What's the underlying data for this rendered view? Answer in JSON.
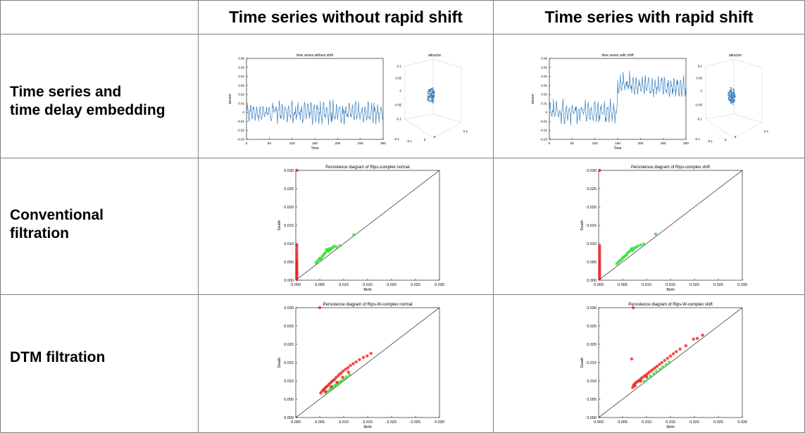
{
  "headers": {
    "col1": "Time series without rapid shift",
    "col2": "Time series with rapid shift"
  },
  "rows": {
    "row1": "Time series and\ntime delay embedding",
    "row2": "Conventional\nfiltration",
    "row3": "DTM filtration"
  },
  "colors": {
    "grid": "#808080",
    "series": "#3a7fbf",
    "green": "#22dd22",
    "red": "#ee1111"
  },
  "chart_data": [
    {
      "type": "line",
      "title": "time series without shift",
      "xlabel": "Time",
      "ylabel": "sensor",
      "xlim": [
        0,
        300
      ],
      "ylim": [
        -0.03,
        0.06
      ],
      "xticks": [
        "0",
        "50",
        "100",
        "150",
        "200",
        "250",
        "300"
      ],
      "yticks": [
        "0.06",
        "0.05",
        "0.04",
        "0.03",
        "0.02",
        "0.01",
        "0",
        "-0.01",
        "-0.02",
        "-0.03"
      ],
      "shift": false
    },
    {
      "type": "scatter",
      "title": "attractor",
      "zticks": [
        "0.1",
        "0.05",
        "0",
        "-0.05",
        "-0.1"
      ],
      "xticks": [
        "-0.1",
        "0"
      ],
      "yticks": [
        "-0.1",
        "0",
        "0.1"
      ]
    },
    {
      "type": "line",
      "title": "time series with shift",
      "xlabel": "Time",
      "ylabel": "sensor",
      "xlim": [
        0,
        300
      ],
      "ylim": [
        -0.03,
        0.06
      ],
      "xticks": [
        "0",
        "50",
        "100",
        "150",
        "200",
        "250",
        "300"
      ],
      "yticks": [
        "0.06",
        "0.05",
        "0.04",
        "0.03",
        "0.02",
        "0.01",
        "0",
        "-0.01",
        "-0.02",
        "-0.03"
      ],
      "shift": true,
      "shift_at": 150
    },
    {
      "type": "scatter",
      "title": "attractor",
      "zticks": [
        "0.1",
        "0.05",
        "0",
        "-0.05",
        "-0.1"
      ],
      "xticks": [
        "-0.1",
        "0"
      ],
      "yticks": [
        "-0.1",
        "0",
        "0.1"
      ]
    },
    {
      "type": "scatter",
      "title": "Persistence diagram of Rips-complex normal",
      "xlabel": "Birth",
      "ylabel": "Death",
      "xlim": [
        0,
        0.03
      ],
      "ylim": [
        0,
        0.03
      ],
      "xticks": [
        "0.000",
        "0.005",
        "0.010",
        "0.015",
        "0.020",
        "0.025",
        "0.030"
      ],
      "yticks": [
        "0.030",
        "0.025",
        "0.020",
        "0.015",
        "0.010",
        "0.005",
        "0.000"
      ],
      "series": [
        {
          "color": "red",
          "points": [
            [
              0.0002,
              0.0002
            ],
            [
              0.0002,
              0.0006
            ],
            [
              0.0002,
              0.001
            ],
            [
              0.0002,
              0.0014
            ],
            [
              0.0002,
              0.0018
            ],
            [
              0.0002,
              0.0022
            ],
            [
              0.0002,
              0.0026
            ],
            [
              0.0002,
              0.003
            ],
            [
              0.0002,
              0.0034
            ],
            [
              0.0002,
              0.0038
            ],
            [
              0.0002,
              0.0042
            ],
            [
              0.0002,
              0.0046
            ],
            [
              0.0002,
              0.005
            ],
            [
              0.0002,
              0.0055
            ],
            [
              0.0002,
              0.006
            ],
            [
              0.0002,
              0.0066
            ],
            [
              0.0002,
              0.0072
            ],
            [
              0.0002,
              0.0078
            ],
            [
              0.0002,
              0.0085
            ],
            [
              0.0002,
              0.0092
            ],
            [
              0.0002,
              0.0097
            ],
            [
              0.0002,
              0.03
            ]
          ]
        },
        {
          "color": "green",
          "points": [
            [
              0.0042,
              0.0048
            ],
            [
              0.0045,
              0.0052
            ],
            [
              0.0048,
              0.0056
            ],
            [
              0.005,
              0.006
            ],
            [
              0.0052,
              0.0058
            ],
            [
              0.0055,
              0.0064
            ],
            [
              0.0057,
              0.0068
            ],
            [
              0.006,
              0.0072
            ],
            [
              0.0062,
              0.0076
            ],
            [
              0.0064,
              0.0084
            ],
            [
              0.0066,
              0.0082
            ],
            [
              0.0068,
              0.0079
            ],
            [
              0.007,
              0.0086
            ],
            [
              0.0072,
              0.0083
            ],
            [
              0.0074,
              0.0087
            ],
            [
              0.0077,
              0.0089
            ],
            [
              0.008,
              0.0093
            ],
            [
              0.0085,
              0.0091
            ],
            [
              0.0092,
              0.0094
            ],
            [
              0.0121,
              0.0124
            ]
          ]
        }
      ]
    },
    {
      "type": "scatter",
      "title": "Persistence diagram of Rips-complex shift",
      "xlabel": "Birth",
      "ylabel": "Death",
      "xlim": [
        0,
        0.03
      ],
      "ylim": [
        0,
        0.03
      ],
      "xticks": [
        "0.000",
        "0.005",
        "0.010",
        "0.015",
        "0.020",
        "0.025",
        "0.030"
      ],
      "yticks": [
        "0.030",
        "0.025",
        "0.020",
        "0.015",
        "0.010",
        "0.005",
        "0.000"
      ],
      "series": [
        {
          "color": "red",
          "points": [
            [
              0.0002,
              0.0003
            ],
            [
              0.0002,
              0.0008
            ],
            [
              0.0002,
              0.0013
            ],
            [
              0.0002,
              0.0018
            ],
            [
              0.0002,
              0.0023
            ],
            [
              0.0002,
              0.0028
            ],
            [
              0.0002,
              0.0033
            ],
            [
              0.0002,
              0.0038
            ],
            [
              0.0002,
              0.0043
            ],
            [
              0.0002,
              0.0048
            ],
            [
              0.0002,
              0.0053
            ],
            [
              0.0002,
              0.0058
            ],
            [
              0.0002,
              0.0064
            ],
            [
              0.0002,
              0.007
            ],
            [
              0.0002,
              0.0076
            ],
            [
              0.0002,
              0.0082
            ],
            [
              0.0002,
              0.0088
            ],
            [
              0.0002,
              0.0094
            ],
            [
              0.0002,
              0.03
            ]
          ]
        },
        {
          "color": "green",
          "points": [
            [
              0.0038,
              0.0045
            ],
            [
              0.0041,
              0.0049
            ],
            [
              0.0044,
              0.0053
            ],
            [
              0.0047,
              0.0056
            ],
            [
              0.005,
              0.006
            ],
            [
              0.0052,
              0.0063
            ],
            [
              0.0055,
              0.0066
            ],
            [
              0.0058,
              0.0069
            ],
            [
              0.006,
              0.0074
            ],
            [
              0.0063,
              0.0077
            ],
            [
              0.0066,
              0.008
            ],
            [
              0.0068,
              0.0084
            ],
            [
              0.007,
              0.0087
            ],
            [
              0.0072,
              0.0082
            ],
            [
              0.0075,
              0.0088
            ],
            [
              0.0078,
              0.009
            ],
            [
              0.0082,
              0.0093
            ],
            [
              0.0088,
              0.0096
            ],
            [
              0.0094,
              0.0099
            ],
            [
              0.0119,
              0.0126
            ]
          ]
        }
      ]
    },
    {
      "type": "scatter",
      "title": "Persistence diagram of Rips-W-complex normal",
      "xlabel": "Birth",
      "ylabel": "Death",
      "xlim": [
        0,
        0.03
      ],
      "ylim": [
        0,
        0.03
      ],
      "xticks": [
        "0.000",
        "0.005",
        "0.010",
        "0.015",
        "0.020",
        "0.025",
        "0.030"
      ],
      "yticks": [
        "0.030",
        "0.025",
        "0.020",
        "0.015",
        "0.010",
        "0.005",
        "0.000"
      ],
      "series": [
        {
          "color": "green",
          "points": [
            [
              0.0062,
              0.0068
            ],
            [
              0.0068,
              0.0072
            ],
            [
              0.0072,
              0.0078
            ],
            [
              0.0076,
              0.0082
            ],
            [
              0.008,
              0.0086
            ],
            [
              0.0084,
              0.0089
            ],
            [
              0.0088,
              0.0093
            ],
            [
              0.0092,
              0.0097
            ],
            [
              0.0096,
              0.0101
            ],
            [
              0.0101,
              0.0106
            ],
            [
              0.0106,
              0.0111
            ],
            [
              0.0112,
              0.0117
            ]
          ]
        },
        {
          "color": "red",
          "points": [
            [
              0.0052,
              0.0067
            ],
            [
              0.0055,
              0.0072
            ],
            [
              0.0058,
              0.0076
            ],
            [
              0.006,
              0.0079
            ],
            [
              0.0063,
              0.0083
            ],
            [
              0.0066,
              0.0086
            ],
            [
              0.0069,
              0.009
            ],
            [
              0.0072,
              0.0094
            ],
            [
              0.0075,
              0.0098
            ],
            [
              0.0078,
              0.0101
            ],
            [
              0.0081,
              0.0104
            ],
            [
              0.0084,
              0.0109
            ],
            [
              0.0088,
              0.0113
            ],
            [
              0.0091,
              0.0118
            ],
            [
              0.0095,
              0.0122
            ],
            [
              0.0099,
              0.0127
            ],
            [
              0.0104,
              0.0132
            ],
            [
              0.0109,
              0.0136
            ],
            [
              0.0114,
              0.0142
            ],
            [
              0.012,
              0.0147
            ],
            [
              0.0126,
              0.0152
            ],
            [
              0.0133,
              0.0158
            ],
            [
              0.0141,
              0.0164
            ],
            [
              0.0149,
              0.0168
            ],
            [
              0.0157,
              0.0175
            ],
            [
              0.0062,
              0.0071
            ],
            [
              0.0074,
              0.0084
            ],
            [
              0.0086,
              0.0096
            ],
            [
              0.0098,
              0.011
            ],
            [
              0.011,
              0.0124
            ],
            [
              0.005,
              0.03
            ]
          ]
        }
      ]
    },
    {
      "type": "scatter",
      "title": "Persistence diagram of Rips-W-complex shift",
      "xlabel": "Birth",
      "ylabel": "Death",
      "xlim": [
        0,
        0.03
      ],
      "ylim": [
        0,
        0.03
      ],
      "xticks": [
        "0.000",
        "0.005",
        "0.010",
        "0.015",
        "0.020",
        "0.025",
        "0.030"
      ],
      "yticks": [
        "0.030",
        "0.025",
        "0.020",
        "0.015",
        "0.010",
        "0.005",
        "0.000"
      ],
      "series": [
        {
          "color": "green",
          "points": [
            [
              0.0095,
              0.0099
            ],
            [
              0.0102,
              0.0106
            ],
            [
              0.0108,
              0.0113
            ],
            [
              0.0115,
              0.012
            ],
            [
              0.0121,
              0.0126
            ],
            [
              0.0128,
              0.0132
            ],
            [
              0.0134,
              0.0138
            ],
            [
              0.0141,
              0.0144
            ],
            [
              0.0147,
              0.0151
            ]
          ]
        },
        {
          "color": "red",
          "points": [
            [
              0.0071,
              0.0082
            ],
            [
              0.0073,
              0.0088
            ],
            [
              0.0075,
              0.0092
            ],
            [
              0.0078,
              0.0095
            ],
            [
              0.0081,
              0.0098
            ],
            [
              0.0084,
              0.0101
            ],
            [
              0.0087,
              0.0104
            ],
            [
              0.009,
              0.0108
            ],
            [
              0.0094,
              0.0112
            ],
            [
              0.0098,
              0.0116
            ],
            [
              0.0102,
              0.012
            ],
            [
              0.0106,
              0.0124
            ],
            [
              0.011,
              0.0128
            ],
            [
              0.0114,
              0.0132
            ],
            [
              0.0118,
              0.0136
            ],
            [
              0.0122,
              0.014
            ],
            [
              0.0127,
              0.0145
            ],
            [
              0.0132,
              0.015
            ],
            [
              0.0138,
              0.0156
            ],
            [
              0.0144,
              0.0162
            ],
            [
              0.015,
              0.0168
            ],
            [
              0.0156,
              0.0174
            ],
            [
              0.0162,
              0.018
            ],
            [
              0.017,
              0.0187
            ],
            [
              0.0182,
              0.0196
            ],
            [
              0.0198,
              0.0214
            ],
            [
              0.0206,
              0.0216
            ],
            [
              0.0217,
              0.0225
            ],
            [
              0.0069,
              0.016
            ],
            [
              0.0076,
              0.0086
            ],
            [
              0.0088,
              0.0099
            ],
            [
              0.01,
              0.0112
            ],
            [
              0.0072,
              0.03
            ]
          ]
        }
      ]
    }
  ]
}
